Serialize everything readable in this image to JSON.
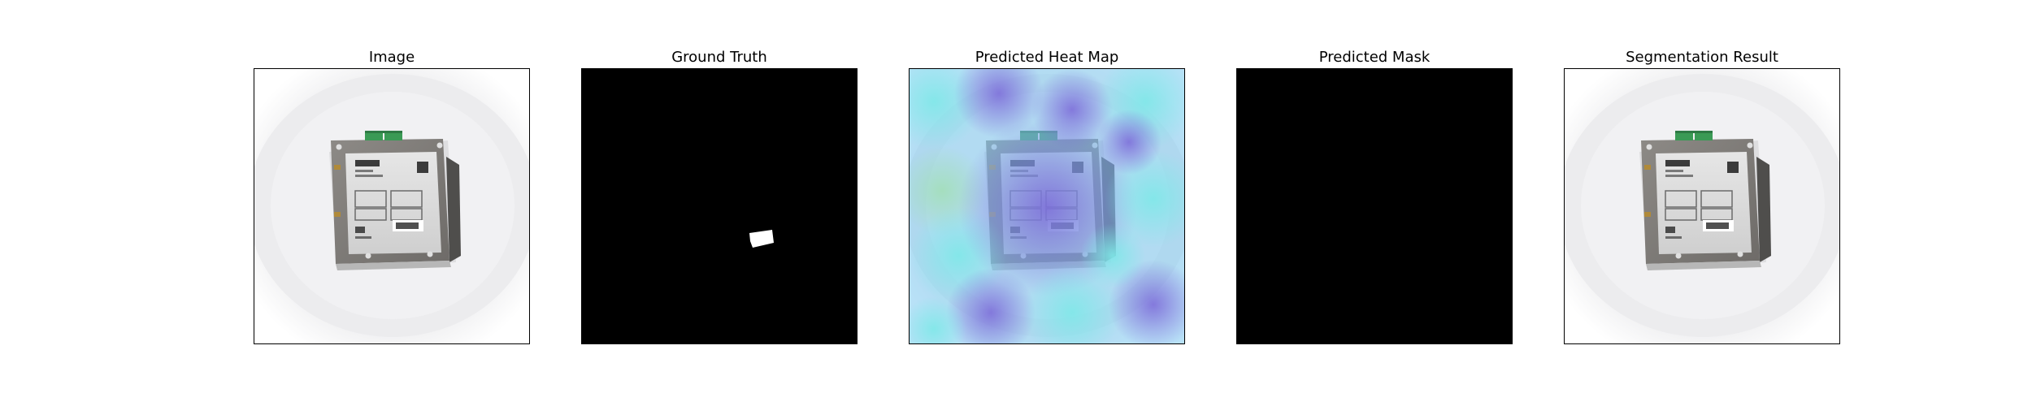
{
  "figure": {
    "panels": [
      {
        "title": "Image"
      },
      {
        "title": "Ground Truth"
      },
      {
        "title": "Predicted Heat Map"
      },
      {
        "title": "Predicted Mask"
      },
      {
        "title": "Segmentation Result"
      }
    ]
  }
}
